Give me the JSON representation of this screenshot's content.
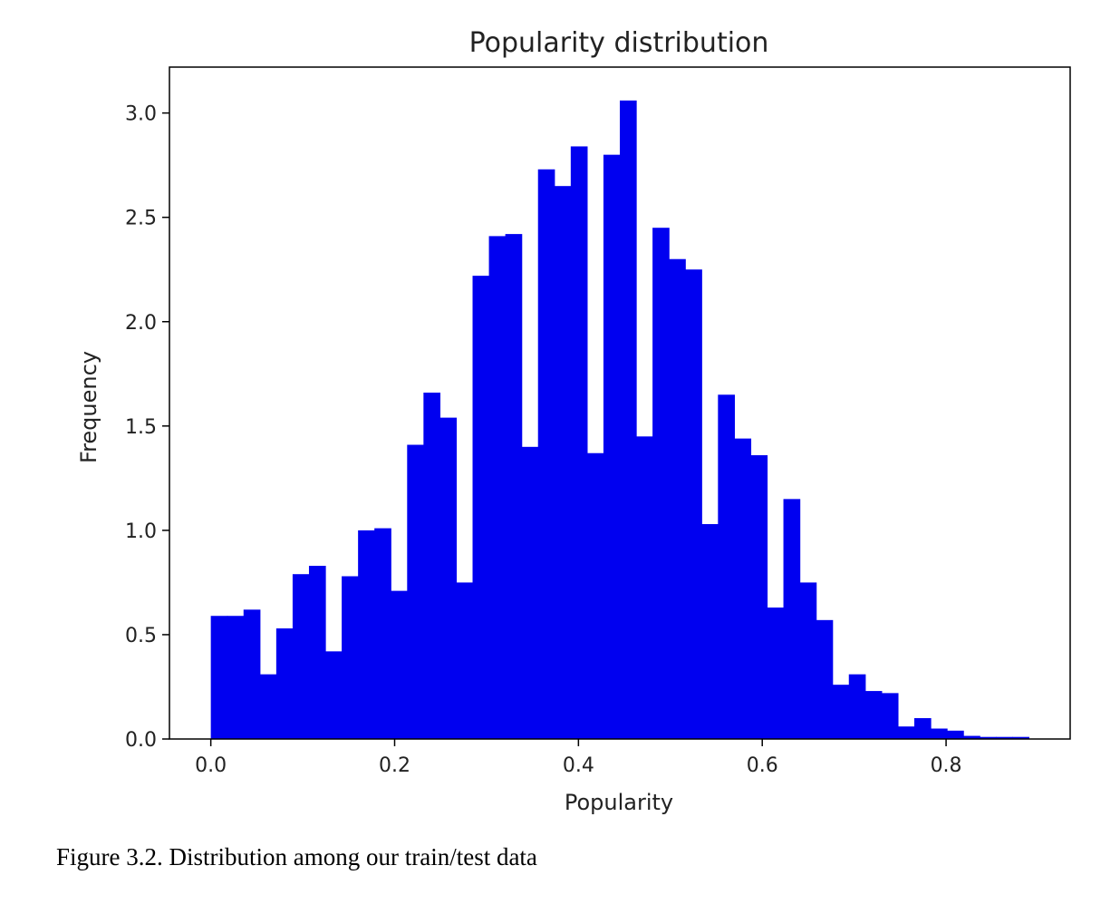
{
  "chart_data": {
    "type": "bar",
    "title": "Popularity distribution",
    "xlabel": "Popularity",
    "ylabel": "Frequency",
    "xlim": [
      -0.045,
      0.935
    ],
    "ylim": [
      0,
      3.22
    ],
    "xticks": [
      0.0,
      0.2,
      0.4,
      0.6,
      0.8
    ],
    "xtick_labels": [
      "0.0",
      "0.2",
      "0.4",
      "0.6",
      "0.8"
    ],
    "yticks": [
      0.0,
      0.5,
      1.0,
      1.5,
      2.0,
      2.5,
      3.0
    ],
    "ytick_labels": [
      "0.0",
      "0.5",
      "1.0",
      "1.5",
      "2.0",
      "2.5",
      "3.0"
    ],
    "bin_start": 0.0,
    "bin_width": 0.0178,
    "values": [
      0.59,
      0.59,
      0.62,
      0.31,
      0.53,
      0.79,
      0.83,
      0.42,
      0.78,
      1.0,
      1.01,
      0.71,
      1.41,
      1.66,
      1.54,
      0.75,
      2.22,
      2.41,
      2.42,
      1.4,
      2.73,
      2.65,
      2.84,
      1.37,
      2.8,
      3.06,
      1.45,
      2.45,
      2.3,
      2.25,
      1.03,
      1.65,
      1.44,
      1.36,
      0.63,
      1.15,
      0.75,
      0.57,
      0.26,
      0.31,
      0.23,
      0.22,
      0.06,
      0.1,
      0.05,
      0.04,
      0.015,
      0.01,
      0.01,
      0.01
    ],
    "bar_color": "#0000f0",
    "grid": false,
    "legend": "none"
  },
  "caption": "Figure 3.2. Distribution among our train/test data"
}
